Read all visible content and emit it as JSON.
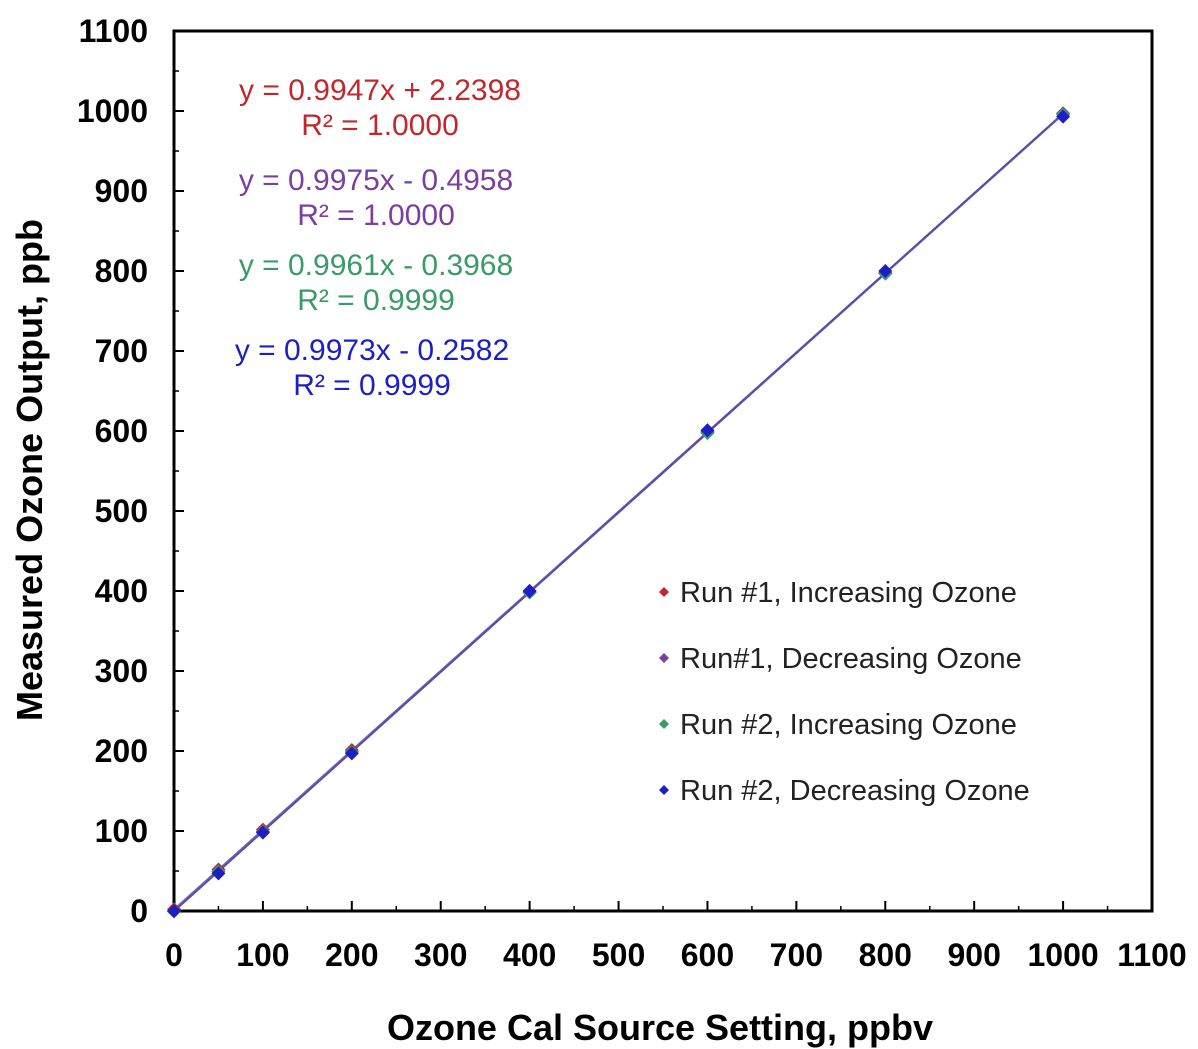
{
  "chart_data": {
    "type": "scatter",
    "title": "",
    "xlabel": "Ozone Cal Source Setting, ppbv",
    "ylabel": "Measured Ozone Output, ppb",
    "xlim": [
      0,
      1100
    ],
    "ylim": [
      0,
      1100
    ],
    "xticks": [
      0,
      100,
      200,
      300,
      400,
      500,
      600,
      700,
      800,
      900,
      1000,
      1100
    ],
    "yticks": [
      0,
      100,
      200,
      300,
      400,
      500,
      600,
      700,
      800,
      900,
      1000,
      1100
    ],
    "x_tick_labels": [
      "0",
      "100",
      "200",
      "300",
      "400",
      "500",
      "600",
      "700",
      "800",
      "900",
      "1000",
      "1100"
    ],
    "y_tick_labels": [
      "0",
      "100",
      "200",
      "300",
      "400",
      "500",
      "600",
      "700",
      "800",
      "900",
      "1000",
      "1100"
    ],
    "grid": false,
    "legend_position": "bottom-right",
    "series": [
      {
        "name": "Run #1, Increasing Ozone",
        "color": "#c0282d",
        "x": [
          0,
          50,
          100,
          200,
          400,
          600,
          800,
          1000
        ],
        "y": [
          2.2,
          51.9,
          101.7,
          201.2,
          400.1,
          599.1,
          798.0,
          997.0
        ],
        "fit": {
          "slope": 0.9947,
          "intercept": 2.2398
        },
        "equation": "y = 0.9947x + 2.2398",
        "r2": "R² = 1.0000"
      },
      {
        "name": "Run#1, Decreasing Ozone",
        "color": "#7b3fa0",
        "x": [
          0,
          50,
          100,
          200,
          400,
          600,
          800,
          1000
        ],
        "y": [
          -0.5,
          49.4,
          99.3,
          199.0,
          398.5,
          598.0,
          797.5,
          997.0
        ],
        "fit": {
          "slope": 0.9975,
          "intercept": -0.4958
        },
        "equation": "y = 0.9975x - 0.4958",
        "r2": "R² = 1.0000"
      },
      {
        "name": "Run #2, Increasing Ozone",
        "color": "#3a9a6a",
        "x": [
          0,
          50,
          100,
          200,
          400,
          600,
          800,
          1000
        ],
        "y": [
          -0.4,
          49.4,
          99.2,
          198.8,
          398.0,
          597.3,
          796.5,
          995.7
        ],
        "fit": {
          "slope": 0.9961,
          "intercept": -0.3968
        },
        "equation": "y = 0.9961x - 0.3968",
        "r2": "R² = 0.9999"
      },
      {
        "name": "Run #2, Decreasing Ozone",
        "color": "#1c1fc4",
        "x": [
          0,
          50,
          100,
          200,
          400,
          600,
          800,
          1000
        ],
        "y": [
          0,
          47,
          98,
          197,
          400,
          601,
          800,
          993
        ],
        "fit": {
          "slope": 0.9973,
          "intercept": -0.2582
        },
        "equation": "y = 0.9973x - 0.2582",
        "r2": "R² = 0.9999"
      }
    ]
  },
  "fit_line_color": "#5a4aa8",
  "axis_color": "#000000"
}
